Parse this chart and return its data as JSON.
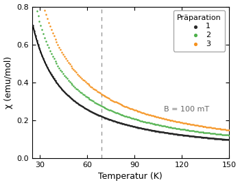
{
  "title": "",
  "xlabel": "Temperatur (K)",
  "ylabel": "χ (emu/mol)",
  "xlim": [
    25,
    150
  ],
  "ylim": [
    0.0,
    0.8
  ],
  "xticks": [
    30,
    60,
    90,
    120,
    150
  ],
  "yticks": [
    0.0,
    0.2,
    0.4,
    0.6,
    0.8
  ],
  "T_min": 25.5,
  "T_max": 150.0,
  "vline_x": 69,
  "legend_title": "Präparation",
  "legend_entries": [
    "1",
    "2",
    "3"
  ],
  "colors": [
    "#2a2a2a",
    "#4db04a",
    "#f5921e"
  ],
  "B_label": "B = 100 mT",
  "C_values": [
    14.0,
    17.5,
    21.5
  ],
  "theta_values": [
    5.5,
    5.5,
    5.5
  ],
  "background_color": "#ffffff",
  "scatter_dot_size": 3.5,
  "line_color": "#000000",
  "line_lw": 1.4,
  "n_dots": 150
}
